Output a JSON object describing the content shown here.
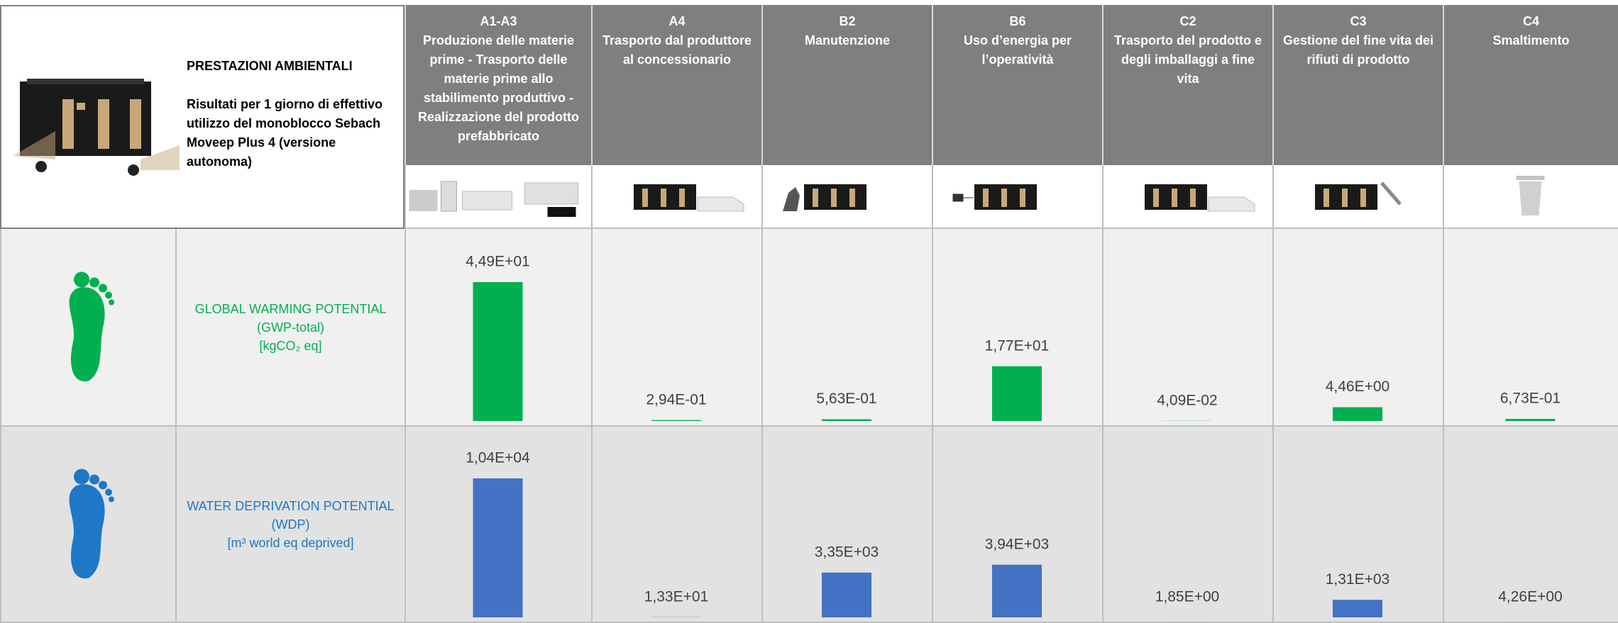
{
  "header": {
    "title": "PRESTAZIONI AMBIENTALI",
    "description": "Risultati per 1 giorno di effettivo utilizzo del monoblocco Sebach Moveep Plus 4 (versione autonoma)"
  },
  "stages": [
    {
      "code": "A1-A3",
      "name": "Produzione delle materie prime - Trasporto delle materie prime allo stabilimento produttivo - Realizzazione del prodotto prefabbricato"
    },
    {
      "code": "A4",
      "name": "Trasporto dal produttore al concessionario"
    },
    {
      "code": "B2",
      "name": "Manutenzione"
    },
    {
      "code": "B6",
      "name": "Uso d’energia per l’operatività"
    },
    {
      "code": "C2",
      "name": "Trasporto del prodotto e degli imballaggi a fine vita"
    },
    {
      "code": "C3",
      "name": "Gestione del fine vita dei rifiuti di prodotto"
    },
    {
      "code": "C4",
      "name": "Smaltimento"
    }
  ],
  "indicators": [
    {
      "name": "GLOBAL WARMING POTENTIAL",
      "abbr": "(GWP-total)",
      "unit": "[kgCO₂ eq]",
      "color": "#00b050",
      "values": [
        44.9,
        0.294,
        0.563,
        17.7,
        0.0409,
        4.46,
        0.673
      ],
      "value_labels": [
        "4,49E+01",
        "2,94E-01",
        "5,63E-01",
        "1,77E+01",
        "4,09E-02",
        "4,46E+00",
        "6,73E-01"
      ]
    },
    {
      "name": "WATER DEPRIVATION POTENTIAL",
      "abbr": "(WDP)",
      "unit": "[m³ world eq deprived]",
      "color": "#1f77c8",
      "bar_color": "#4472c4",
      "values": [
        10400,
        13.3,
        3350,
        3940,
        1.85,
        1310,
        4.26
      ],
      "value_labels": [
        "1,04E+04",
        "1,33E+01",
        "3,35E+03",
        "3,94E+03",
        "1,85E+00",
        "1,31E+03",
        "4,26E+00"
      ]
    }
  ]
}
